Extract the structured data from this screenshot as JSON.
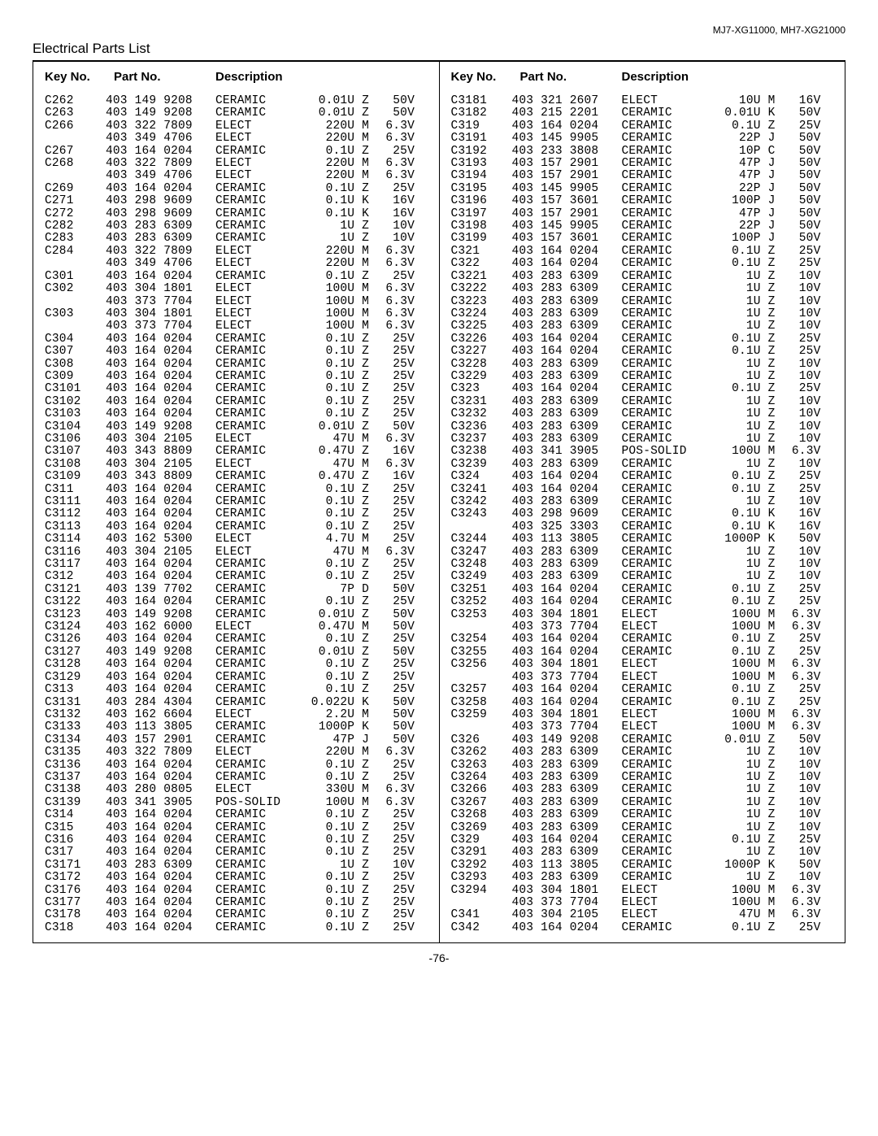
{
  "model_label": "MJ7-XG11000, MH7-XG21000",
  "section_title": "Electrical Parts List",
  "headers": {
    "key": "Key No.",
    "part": "Part No.",
    "desc": "Description"
  },
  "page_number": "-76-",
  "left": [
    {
      "key": "C262",
      "p": "403 149 9208",
      "t": "CERAMIC",
      "v": "0.01U Z",
      "volt": "50V"
    },
    {
      "key": "C263",
      "p": "403 149 9208",
      "t": "CERAMIC",
      "v": "0.01U Z",
      "volt": "50V"
    },
    {
      "key": "C266",
      "p": "403 322 7809",
      "t": "ELECT",
      "v": "220U M",
      "volt": "6.3V"
    },
    {
      "key": "",
      "p": "403 349 4706",
      "t": "ELECT",
      "v": "220U M",
      "volt": "6.3V"
    },
    {
      "key": "C267",
      "p": "403 164 0204",
      "t": "CERAMIC",
      "v": "0.1U Z",
      "volt": "25V"
    },
    {
      "key": "C268",
      "p": "403 322 7809",
      "t": "ELECT",
      "v": "220U M",
      "volt": "6.3V"
    },
    {
      "key": "",
      "p": "403 349 4706",
      "t": "ELECT",
      "v": "220U M",
      "volt": "6.3V"
    },
    {
      "key": "C269",
      "p": "403 164 0204",
      "t": "CERAMIC",
      "v": "0.1U Z",
      "volt": "25V"
    },
    {
      "key": "C271",
      "p": "403 298 9609",
      "t": "CERAMIC",
      "v": "0.1U K",
      "volt": "16V"
    },
    {
      "key": "C272",
      "p": "403 298 9609",
      "t": "CERAMIC",
      "v": "0.1U K",
      "volt": "16V"
    },
    {
      "key": "C282",
      "p": "403 283 6309",
      "t": "CERAMIC",
      "v": "1U Z",
      "volt": "10V"
    },
    {
      "key": "C283",
      "p": "403 283 6309",
      "t": "CERAMIC",
      "v": "1U Z",
      "volt": "10V"
    },
    {
      "key": "C284",
      "p": "403 322 7809",
      "t": "ELECT",
      "v": "220U M",
      "volt": "6.3V"
    },
    {
      "key": "",
      "p": "403 349 4706",
      "t": "ELECT",
      "v": "220U M",
      "volt": "6.3V"
    },
    {
      "key": "C301",
      "p": "403 164 0204",
      "t": "CERAMIC",
      "v": "0.1U Z",
      "volt": "25V"
    },
    {
      "key": "C302",
      "p": "403 304 1801",
      "t": "ELECT",
      "v": "100U M",
      "volt": "6.3V"
    },
    {
      "key": "",
      "p": "403 373 7704",
      "t": "ELECT",
      "v": "100U M",
      "volt": "6.3V"
    },
    {
      "key": "C303",
      "p": "403 304 1801",
      "t": "ELECT",
      "v": "100U M",
      "volt": "6.3V"
    },
    {
      "key": "",
      "p": "403 373 7704",
      "t": "ELECT",
      "v": "100U M",
      "volt": "6.3V"
    },
    {
      "key": "C304",
      "p": "403 164 0204",
      "t": "CERAMIC",
      "v": "0.1U Z",
      "volt": "25V"
    },
    {
      "key": "C307",
      "p": "403 164 0204",
      "t": "CERAMIC",
      "v": "0.1U Z",
      "volt": "25V"
    },
    {
      "key": "C308",
      "p": "403 164 0204",
      "t": "CERAMIC",
      "v": "0.1U Z",
      "volt": "25V"
    },
    {
      "key": "C309",
      "p": "403 164 0204",
      "t": "CERAMIC",
      "v": "0.1U Z",
      "volt": "25V"
    },
    {
      "key": "C3101",
      "p": "403 164 0204",
      "t": "CERAMIC",
      "v": "0.1U Z",
      "volt": "25V"
    },
    {
      "key": "C3102",
      "p": "403 164 0204",
      "t": "CERAMIC",
      "v": "0.1U Z",
      "volt": "25V"
    },
    {
      "key": "C3103",
      "p": "403 164 0204",
      "t": "CERAMIC",
      "v": "0.1U Z",
      "volt": "25V"
    },
    {
      "key": "C3104",
      "p": "403 149 9208",
      "t": "CERAMIC",
      "v": "0.01U Z",
      "volt": "50V"
    },
    {
      "key": "C3106",
      "p": "403 304 2105",
      "t": "ELECT",
      "v": "47U M",
      "volt": "6.3V"
    },
    {
      "key": "C3107",
      "p": "403 343 8809",
      "t": "CERAMIC",
      "v": "0.47U Z",
      "volt": "16V"
    },
    {
      "key": "C3108",
      "p": "403 304 2105",
      "t": "ELECT",
      "v": "47U M",
      "volt": "6.3V"
    },
    {
      "key": "C3109",
      "p": "403 343 8809",
      "t": "CERAMIC",
      "v": "0.47U Z",
      "volt": "16V"
    },
    {
      "key": "C311",
      "p": "403 164 0204",
      "t": "CERAMIC",
      "v": "0.1U Z",
      "volt": "25V"
    },
    {
      "key": "C3111",
      "p": "403 164 0204",
      "t": "CERAMIC",
      "v": "0.1U Z",
      "volt": "25V"
    },
    {
      "key": "C3112",
      "p": "403 164 0204",
      "t": "CERAMIC",
      "v": "0.1U Z",
      "volt": "25V"
    },
    {
      "key": "C3113",
      "p": "403 164 0204",
      "t": "CERAMIC",
      "v": "0.1U Z",
      "volt": "25V"
    },
    {
      "key": "C3114",
      "p": "403 162 5300",
      "t": "ELECT",
      "v": "4.7U M",
      "volt": "25V"
    },
    {
      "key": "C3116",
      "p": "403 304 2105",
      "t": "ELECT",
      "v": "47U M",
      "volt": "6.3V"
    },
    {
      "key": "C3117",
      "p": "403 164 0204",
      "t": "CERAMIC",
      "v": "0.1U Z",
      "volt": "25V"
    },
    {
      "key": "C312",
      "p": "403 164 0204",
      "t": "CERAMIC",
      "v": "0.1U Z",
      "volt": "25V"
    },
    {
      "key": "C3121",
      "p": "403 139 7702",
      "t": "CERAMIC",
      "v": "7P D",
      "volt": "50V"
    },
    {
      "key": "C3122",
      "p": "403 164 0204",
      "t": "CERAMIC",
      "v": "0.1U Z",
      "volt": "25V"
    },
    {
      "key": "C3123",
      "p": "403 149 9208",
      "t": "CERAMIC",
      "v": "0.01U Z",
      "volt": "50V"
    },
    {
      "key": "C3124",
      "p": "403 162 6000",
      "t": "ELECT",
      "v": "0.47U M",
      "volt": "50V"
    },
    {
      "key": "C3126",
      "p": "403 164 0204",
      "t": "CERAMIC",
      "v": "0.1U Z",
      "volt": "25V"
    },
    {
      "key": "C3127",
      "p": "403 149 9208",
      "t": "CERAMIC",
      "v": "0.01U Z",
      "volt": "50V"
    },
    {
      "key": "C3128",
      "p": "403 164 0204",
      "t": "CERAMIC",
      "v": "0.1U Z",
      "volt": "25V"
    },
    {
      "key": "C3129",
      "p": "403 164 0204",
      "t": "CERAMIC",
      "v": "0.1U Z",
      "volt": "25V"
    },
    {
      "key": "C313",
      "p": "403 164 0204",
      "t": "CERAMIC",
      "v": "0.1U Z",
      "volt": "25V"
    },
    {
      "key": "C3131",
      "p": "403 284 4304",
      "t": "CERAMIC",
      "v": "0.022U K",
      "volt": "50V"
    },
    {
      "key": "C3132",
      "p": "403 162 6604",
      "t": "ELECT",
      "v": "2.2U M",
      "volt": "50V"
    },
    {
      "key": "C3133",
      "p": "403 113 3805",
      "t": "CERAMIC",
      "v": "1000P K",
      "volt": "50V"
    },
    {
      "key": "C3134",
      "p": "403 157 2901",
      "t": "CERAMIC",
      "v": "47P J",
      "volt": "50V"
    },
    {
      "key": "C3135",
      "p": "403 322 7809",
      "t": "ELECT",
      "v": "220U M",
      "volt": "6.3V"
    },
    {
      "key": "C3136",
      "p": "403 164 0204",
      "t": "CERAMIC",
      "v": "0.1U Z",
      "volt": "25V"
    },
    {
      "key": "C3137",
      "p": "403 164 0204",
      "t": "CERAMIC",
      "v": "0.1U Z",
      "volt": "25V"
    },
    {
      "key": "C3138",
      "p": "403 280 0805",
      "t": "ELECT",
      "v": "330U M",
      "volt": "6.3V"
    },
    {
      "key": "C3139",
      "p": "403 341 3905",
      "t": "POS-SOLID",
      "v": "100U M",
      "volt": "6.3V"
    },
    {
      "key": "C314",
      "p": "403 164 0204",
      "t": "CERAMIC",
      "v": "0.1U Z",
      "volt": "25V"
    },
    {
      "key": "C315",
      "p": "403 164 0204",
      "t": "CERAMIC",
      "v": "0.1U Z",
      "volt": "25V"
    },
    {
      "key": "C316",
      "p": "403 164 0204",
      "t": "CERAMIC",
      "v": "0.1U Z",
      "volt": "25V"
    },
    {
      "key": "C317",
      "p": "403 164 0204",
      "t": "CERAMIC",
      "v": "0.1U Z",
      "volt": "25V"
    },
    {
      "key": "C3171",
      "p": "403 283 6309",
      "t": "CERAMIC",
      "v": "1U Z",
      "volt": "10V"
    },
    {
      "key": "C3172",
      "p": "403 164 0204",
      "t": "CERAMIC",
      "v": "0.1U Z",
      "volt": "25V"
    },
    {
      "key": "C3176",
      "p": "403 164 0204",
      "t": "CERAMIC",
      "v": "0.1U Z",
      "volt": "25V"
    },
    {
      "key": "C3177",
      "p": "403 164 0204",
      "t": "CERAMIC",
      "v": "0.1U Z",
      "volt": "25V"
    },
    {
      "key": "C3178",
      "p": "403 164 0204",
      "t": "CERAMIC",
      "v": "0.1U Z",
      "volt": "25V"
    },
    {
      "key": "C318",
      "p": "403 164 0204",
      "t": "CERAMIC",
      "v": "0.1U Z",
      "volt": "25V"
    }
  ],
  "right": [
    {
      "key": "C3181",
      "p": "403 321 2607",
      "t": "ELECT",
      "v": "10U M",
      "volt": "16V"
    },
    {
      "key": "C3182",
      "p": "403 215 2201",
      "t": "CERAMIC",
      "v": "0.01U K",
      "volt": "50V"
    },
    {
      "key": "C319",
      "p": "403 164 0204",
      "t": "CERAMIC",
      "v": "0.1U Z",
      "volt": "25V"
    },
    {
      "key": "C3191",
      "p": "403 145 9905",
      "t": "CERAMIC",
      "v": "22P J",
      "volt": "50V"
    },
    {
      "key": "C3192",
      "p": "403 233 3808",
      "t": "CERAMIC",
      "v": "10P C",
      "volt": "50V"
    },
    {
      "key": "C3193",
      "p": "403 157 2901",
      "t": "CERAMIC",
      "v": "47P J",
      "volt": "50V"
    },
    {
      "key": "C3194",
      "p": "403 157 2901",
      "t": "CERAMIC",
      "v": "47P J",
      "volt": "50V"
    },
    {
      "key": "C3195",
      "p": "403 145 9905",
      "t": "CERAMIC",
      "v": "22P J",
      "volt": "50V"
    },
    {
      "key": "C3196",
      "p": "403 157 3601",
      "t": "CERAMIC",
      "v": "100P J",
      "volt": "50V"
    },
    {
      "key": "C3197",
      "p": "403 157 2901",
      "t": "CERAMIC",
      "v": "47P J",
      "volt": "50V"
    },
    {
      "key": "C3198",
      "p": "403 145 9905",
      "t": "CERAMIC",
      "v": "22P J",
      "volt": "50V"
    },
    {
      "key": "C3199",
      "p": "403 157 3601",
      "t": "CERAMIC",
      "v": "100P J",
      "volt": "50V"
    },
    {
      "key": "C321",
      "p": "403 164 0204",
      "t": "CERAMIC",
      "v": "0.1U Z",
      "volt": "25V"
    },
    {
      "key": "C322",
      "p": "403 164 0204",
      "t": "CERAMIC",
      "v": "0.1U Z",
      "volt": "25V"
    },
    {
      "key": "C3221",
      "p": "403 283 6309",
      "t": "CERAMIC",
      "v": "1U Z",
      "volt": "10V"
    },
    {
      "key": "C3222",
      "p": "403 283 6309",
      "t": "CERAMIC",
      "v": "1U Z",
      "volt": "10V"
    },
    {
      "key": "C3223",
      "p": "403 283 6309",
      "t": "CERAMIC",
      "v": "1U Z",
      "volt": "10V"
    },
    {
      "key": "C3224",
      "p": "403 283 6309",
      "t": "CERAMIC",
      "v": "1U Z",
      "volt": "10V"
    },
    {
      "key": "C3225",
      "p": "403 283 6309",
      "t": "CERAMIC",
      "v": "1U Z",
      "volt": "10V"
    },
    {
      "key": "C3226",
      "p": "403 164 0204",
      "t": "CERAMIC",
      "v": "0.1U Z",
      "volt": "25V"
    },
    {
      "key": "C3227",
      "p": "403 164 0204",
      "t": "CERAMIC",
      "v": "0.1U Z",
      "volt": "25V"
    },
    {
      "key": "C3228",
      "p": "403 283 6309",
      "t": "CERAMIC",
      "v": "1U Z",
      "volt": "10V"
    },
    {
      "key": "C3229",
      "p": "403 283 6309",
      "t": "CERAMIC",
      "v": "1U Z",
      "volt": "10V"
    },
    {
      "key": "C323",
      "p": "403 164 0204",
      "t": "CERAMIC",
      "v": "0.1U Z",
      "volt": "25V"
    },
    {
      "key": "C3231",
      "p": "403 283 6309",
      "t": "CERAMIC",
      "v": "1U Z",
      "volt": "10V"
    },
    {
      "key": "C3232",
      "p": "403 283 6309",
      "t": "CERAMIC",
      "v": "1U Z",
      "volt": "10V"
    },
    {
      "key": "C3236",
      "p": "403 283 6309",
      "t": "CERAMIC",
      "v": "1U Z",
      "volt": "10V"
    },
    {
      "key": "C3237",
      "p": "403 283 6309",
      "t": "CERAMIC",
      "v": "1U Z",
      "volt": "10V"
    },
    {
      "key": "C3238",
      "p": "403 341 3905",
      "t": "POS-SOLID",
      "v": "100U M",
      "volt": "6.3V"
    },
    {
      "key": "C3239",
      "p": "403 283 6309",
      "t": "CERAMIC",
      "v": "1U Z",
      "volt": "10V"
    },
    {
      "key": "C324",
      "p": "403 164 0204",
      "t": "CERAMIC",
      "v": "0.1U Z",
      "volt": "25V"
    },
    {
      "key": "C3241",
      "p": "403 164 0204",
      "t": "CERAMIC",
      "v": "0.1U Z",
      "volt": "25V"
    },
    {
      "key": "C3242",
      "p": "403 283 6309",
      "t": "CERAMIC",
      "v": "1U Z",
      "volt": "10V"
    },
    {
      "key": "C3243",
      "p": "403 298 9609",
      "t": "CERAMIC",
      "v": "0.1U K",
      "volt": "16V"
    },
    {
      "key": "",
      "p": "403 325 3303",
      "t": "CERAMIC",
      "v": "0.1U K",
      "volt": "16V"
    },
    {
      "key": "C3244",
      "p": "403 113 3805",
      "t": "CERAMIC",
      "v": "1000P K",
      "volt": "50V"
    },
    {
      "key": "C3247",
      "p": "403 283 6309",
      "t": "CERAMIC",
      "v": "1U Z",
      "volt": "10V"
    },
    {
      "key": "C3248",
      "p": "403 283 6309",
      "t": "CERAMIC",
      "v": "1U Z",
      "volt": "10V"
    },
    {
      "key": "C3249",
      "p": "403 283 6309",
      "t": "CERAMIC",
      "v": "1U Z",
      "volt": "10V"
    },
    {
      "key": "C3251",
      "p": "403 164 0204",
      "t": "CERAMIC",
      "v": "0.1U Z",
      "volt": "25V"
    },
    {
      "key": "C3252",
      "p": "403 164 0204",
      "t": "CERAMIC",
      "v": "0.1U Z",
      "volt": "25V"
    },
    {
      "key": "C3253",
      "p": "403 304 1801",
      "t": "ELECT",
      "v": "100U M",
      "volt": "6.3V"
    },
    {
      "key": "",
      "p": "403 373 7704",
      "t": "ELECT",
      "v": "100U M",
      "volt": "6.3V"
    },
    {
      "key": "C3254",
      "p": "403 164 0204",
      "t": "CERAMIC",
      "v": "0.1U Z",
      "volt": "25V"
    },
    {
      "key": "C3255",
      "p": "403 164 0204",
      "t": "CERAMIC",
      "v": "0.1U Z",
      "volt": "25V"
    },
    {
      "key": "C3256",
      "p": "403 304 1801",
      "t": "ELECT",
      "v": "100U M",
      "volt": "6.3V"
    },
    {
      "key": "",
      "p": "403 373 7704",
      "t": "ELECT",
      "v": "100U M",
      "volt": "6.3V"
    },
    {
      "key": "C3257",
      "p": "403 164 0204",
      "t": "CERAMIC",
      "v": "0.1U Z",
      "volt": "25V"
    },
    {
      "key": "C3258",
      "p": "403 164 0204",
      "t": "CERAMIC",
      "v": "0.1U Z",
      "volt": "25V"
    },
    {
      "key": "C3259",
      "p": "403 304 1801",
      "t": "ELECT",
      "v": "100U M",
      "volt": "6.3V"
    },
    {
      "key": "",
      "p": "403 373 7704",
      "t": "ELECT",
      "v": "100U M",
      "volt": "6.3V"
    },
    {
      "key": "C326",
      "p": "403 149 9208",
      "t": "CERAMIC",
      "v": "0.01U Z",
      "volt": "50V"
    },
    {
      "key": "C3262",
      "p": "403 283 6309",
      "t": "CERAMIC",
      "v": "1U Z",
      "volt": "10V"
    },
    {
      "key": "C3263",
      "p": "403 283 6309",
      "t": "CERAMIC",
      "v": "1U Z",
      "volt": "10V"
    },
    {
      "key": "C3264",
      "p": "403 283 6309",
      "t": "CERAMIC",
      "v": "1U Z",
      "volt": "10V"
    },
    {
      "key": "C3266",
      "p": "403 283 6309",
      "t": "CERAMIC",
      "v": "1U Z",
      "volt": "10V"
    },
    {
      "key": "C3267",
      "p": "403 283 6309",
      "t": "CERAMIC",
      "v": "1U Z",
      "volt": "10V"
    },
    {
      "key": "C3268",
      "p": "403 283 6309",
      "t": "CERAMIC",
      "v": "1U Z",
      "volt": "10V"
    },
    {
      "key": "C3269",
      "p": "403 283 6309",
      "t": "CERAMIC",
      "v": "1U Z",
      "volt": "10V"
    },
    {
      "key": "C329",
      "p": "403 164 0204",
      "t": "CERAMIC",
      "v": "0.1U Z",
      "volt": "25V"
    },
    {
      "key": "C3291",
      "p": "403 283 6309",
      "t": "CERAMIC",
      "v": "1U Z",
      "volt": "10V"
    },
    {
      "key": "C3292",
      "p": "403 113 3805",
      "t": "CERAMIC",
      "v": "1000P K",
      "volt": "50V"
    },
    {
      "key": "C3293",
      "p": "403 283 6309",
      "t": "CERAMIC",
      "v": "1U Z",
      "volt": "10V"
    },
    {
      "key": "C3294",
      "p": "403 304 1801",
      "t": "ELECT",
      "v": "100U M",
      "volt": "6.3V"
    },
    {
      "key": "",
      "p": "403 373 7704",
      "t": "ELECT",
      "v": "100U M",
      "volt": "6.3V"
    },
    {
      "key": "C341",
      "p": "403 304 2105",
      "t": "ELECT",
      "v": "47U M",
      "volt": "6.3V"
    },
    {
      "key": "C342",
      "p": "403 164 0204",
      "t": "CERAMIC",
      "v": "0.1U Z",
      "volt": "25V"
    }
  ]
}
